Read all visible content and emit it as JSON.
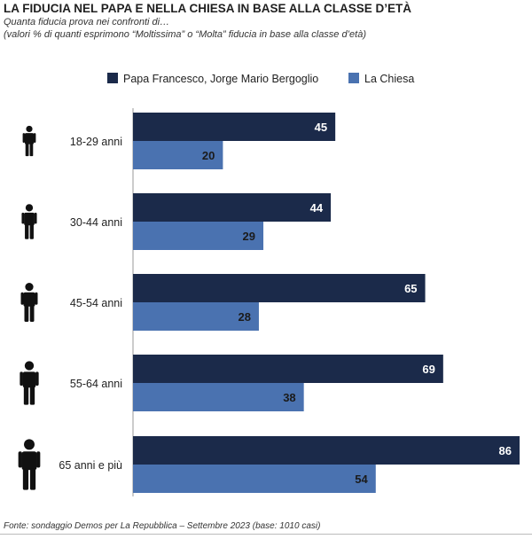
{
  "header": {
    "title": "LA FIDUCIA NEL PAPA E NELLA CHIESA IN BASE ALLA CLASSE D’ETÀ",
    "subtitle1": "Quanta fiducia prova nei confronti di…",
    "subtitle2": "(valori % di quanti esprimono “Moltissima” o “Molta” fiducia in base alla classe d’età)"
  },
  "footer": {
    "source": "Fonte: sondaggio Demos per La Repubblica – Settembre 2023 (base: 1010 casi)"
  },
  "colors": {
    "papa": "#1b2a4a",
    "chiesa": "#4a72b0",
    "person_icon": "#111111",
    "bar_label_papa": "#ffffff",
    "bar_label_chiesa": "#1b1b1b"
  },
  "icons": [
    "person-icon",
    "person-icon",
    "person-icon",
    "person-icon",
    "person-icon"
  ],
  "chart_data": {
    "type": "bar",
    "orientation": "horizontal",
    "categories": [
      "18-29 anni",
      "30-44 anni",
      "45-54 anni",
      "55-64 anni",
      "65 anni e più"
    ],
    "series": [
      {
        "name": "Papa Francesco, Jorge Mario Bergoglio",
        "values": [
          45,
          44,
          65,
          69,
          86
        ]
      },
      {
        "name": "La Chiesa",
        "values": [
          20,
          29,
          28,
          38,
          54
        ]
      }
    ],
    "xlim": [
      0,
      90
    ],
    "legend_position": "top",
    "grid": false
  }
}
